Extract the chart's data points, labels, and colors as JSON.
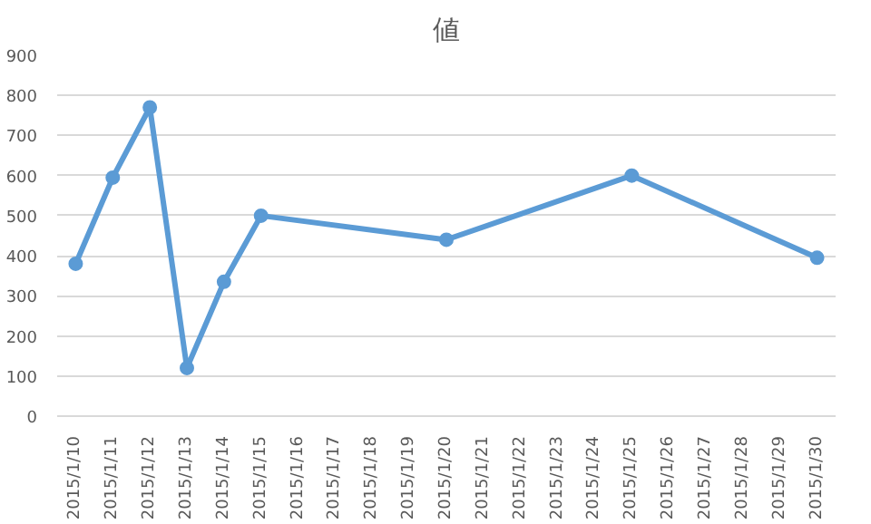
{
  "chart_data": {
    "type": "line",
    "title": "値",
    "x": [
      "2015-01-10",
      "2015-01-11",
      "2015-01-12",
      "2015-01-13",
      "2015-01-14",
      "2015-01-15",
      "2015-01-20",
      "2015-01-25",
      "2015-01-30"
    ],
    "series": [
      {
        "color": "#5b9bd5",
        "values": [
          380,
          595,
          770,
          120,
          335,
          500,
          440,
          600,
          395
        ]
      }
    ],
    "xlim": [
      "2015-01-09T12:00",
      "2015-01-30T12:00"
    ],
    "xticks": [
      {
        "value": "2015-01-10",
        "label": "2015/1/10"
      },
      {
        "value": "2015-01-11",
        "label": "2015/1/11"
      },
      {
        "value": "2015-01-12",
        "label": "2015/1/12"
      },
      {
        "value": "2015-01-13",
        "label": "2015/1/13"
      },
      {
        "value": "2015-01-14",
        "label": "2015/1/14"
      },
      {
        "value": "2015-01-15",
        "label": "2015/1/15"
      },
      {
        "value": "2015-01-16",
        "label": "2015/1/16"
      },
      {
        "value": "2015-01-17",
        "label": "2015/1/17"
      },
      {
        "value": "2015-01-18",
        "label": "2015/1/18"
      },
      {
        "value": "2015-01-19",
        "label": "2015/1/19"
      },
      {
        "value": "2015-01-20",
        "label": "2015/1/20"
      },
      {
        "value": "2015-01-21",
        "label": "2015/1/21"
      },
      {
        "value": "2015-01-22",
        "label": "2015/1/22"
      },
      {
        "value": "2015-01-23",
        "label": "2015/1/23"
      },
      {
        "value": "2015-01-24",
        "label": "2015/1/24"
      },
      {
        "value": "2015-01-25",
        "label": "2015/1/25"
      },
      {
        "value": "2015-01-26",
        "label": "2015/1/26"
      },
      {
        "value": "2015-01-27",
        "label": "2015/1/27"
      },
      {
        "value": "2015-01-28",
        "label": "2015/1/28"
      },
      {
        "value": "2015-01-29",
        "label": "2015/1/29"
      },
      {
        "value": "2015-01-30",
        "label": "2015/1/30"
      }
    ],
    "ylim": [
      0,
      900
    ],
    "yticks": [
      0,
      100,
      200,
      300,
      400,
      500,
      600,
      700,
      800,
      900
    ],
    "grid": "y",
    "marker": "circle",
    "line_style": "solid"
  }
}
